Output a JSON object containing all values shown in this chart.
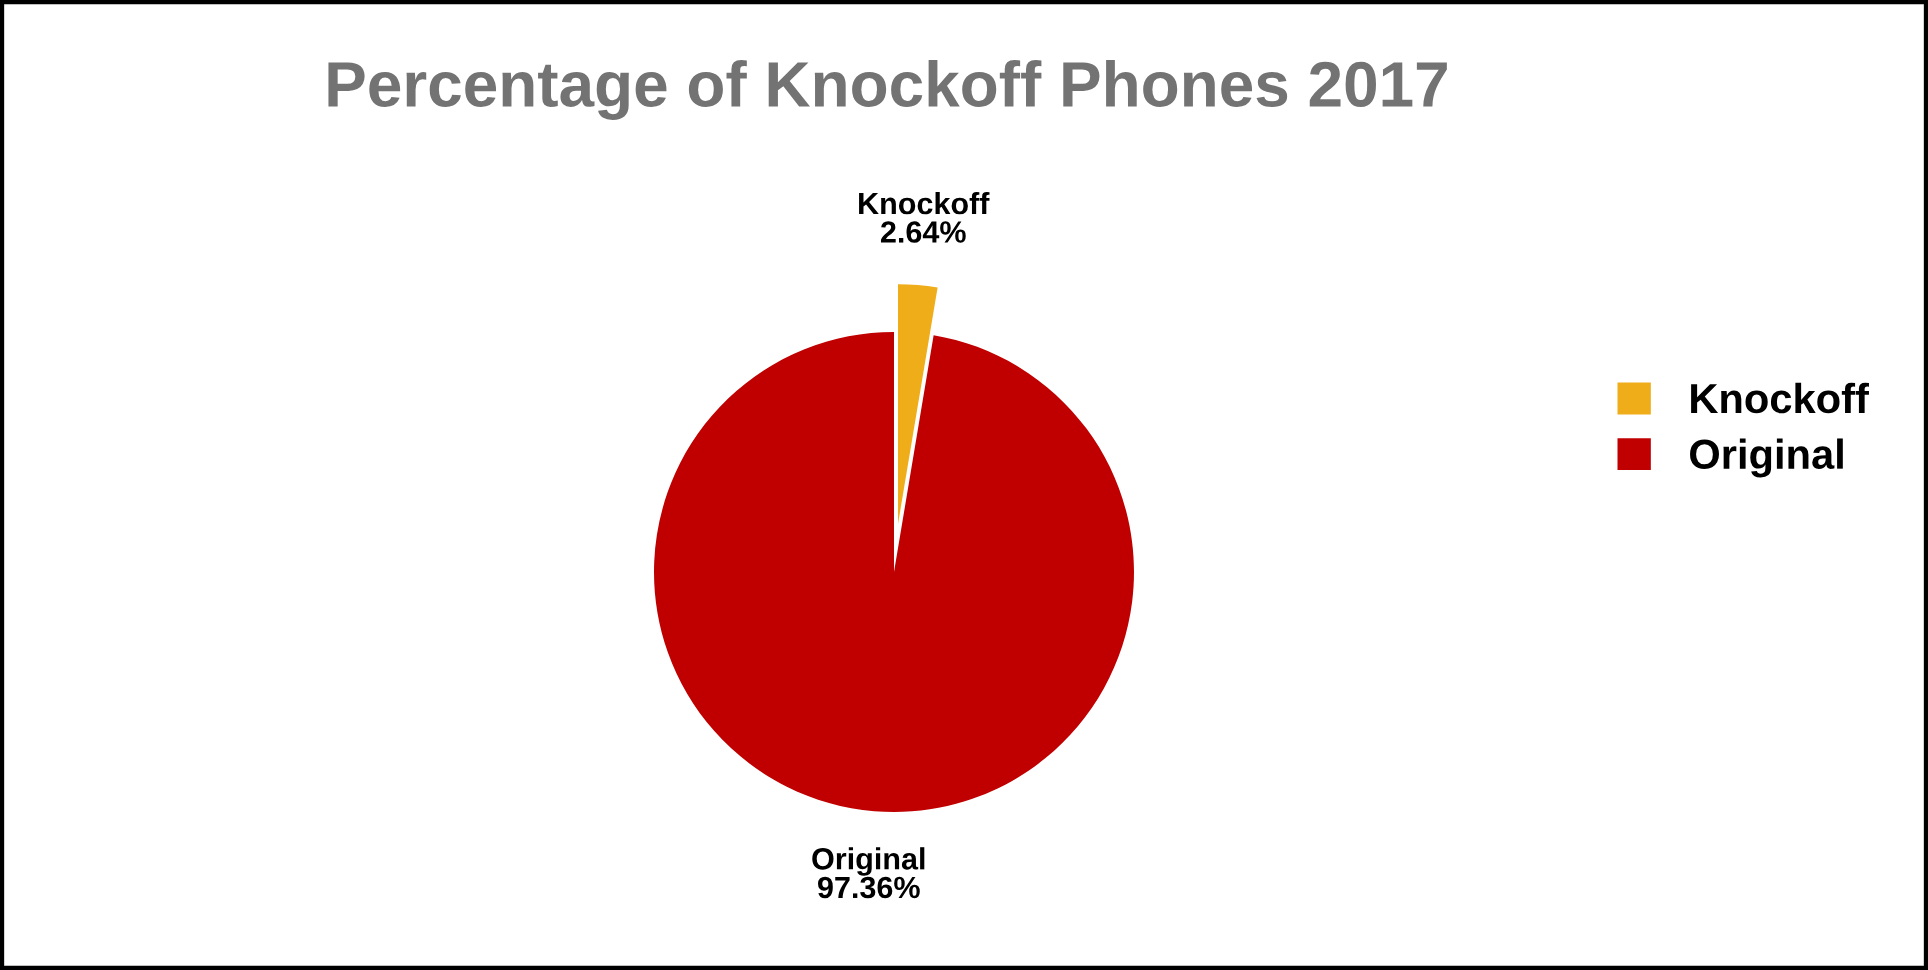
{
  "chart_data": {
    "type": "pie",
    "title": "Percentage of Knockoff Phones 2017",
    "categories": [
      "Knockoff",
      "Original"
    ],
    "values": [
      2.64,
      97.36
    ],
    "colors": [
      "#f0ad1a",
      "#c00000"
    ],
    "value_labels": [
      "2.64%",
      "97.36%"
    ],
    "legend": "right"
  }
}
